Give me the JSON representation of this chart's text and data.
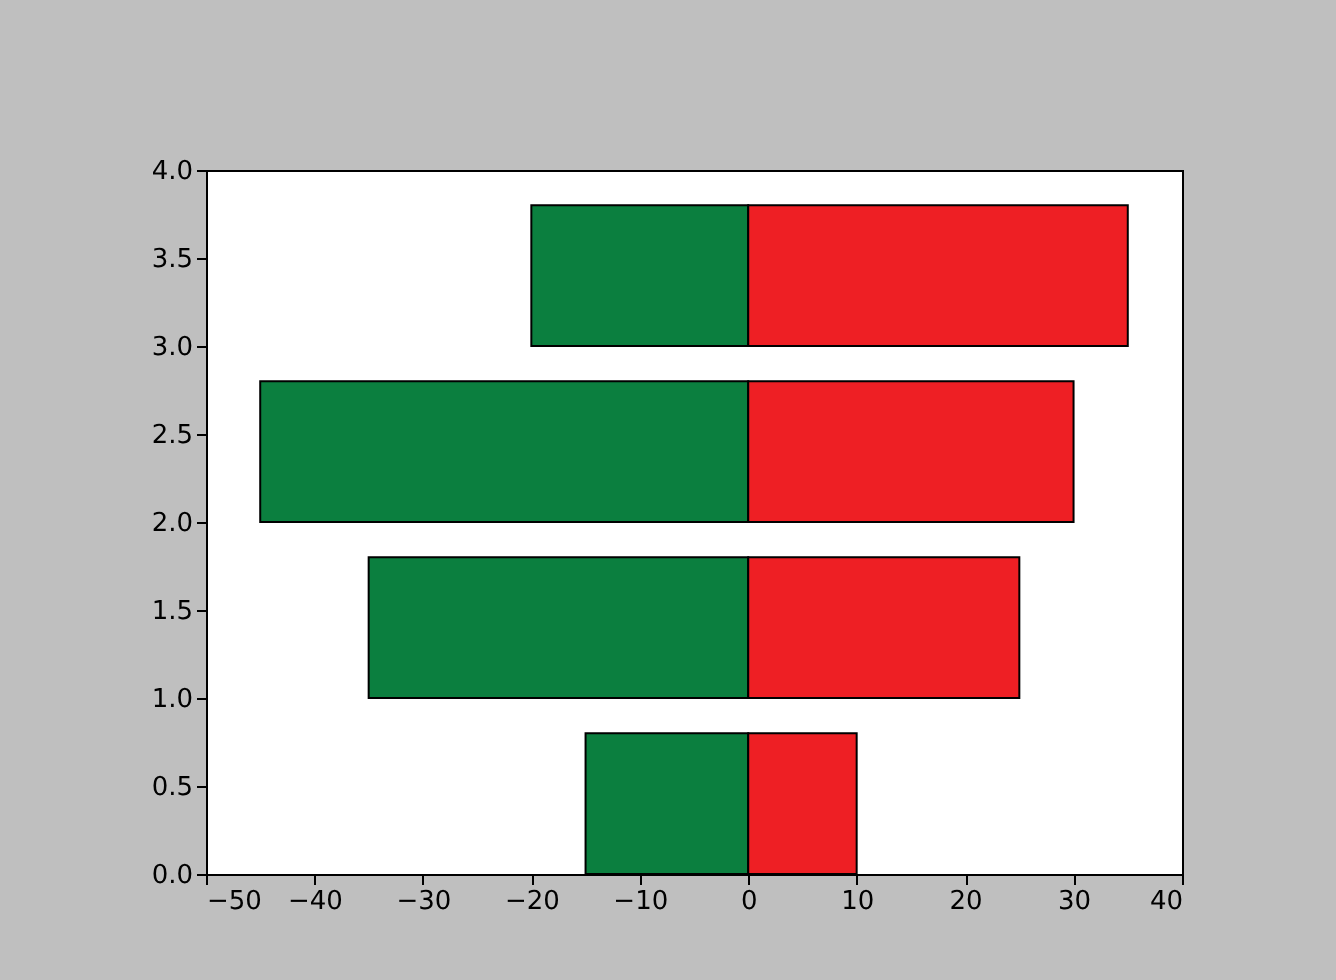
{
  "chart_data": {
    "type": "bar",
    "orientation": "horizontal",
    "stacked": true,
    "x": [
      0.4,
      1.4,
      2.4,
      3.4
    ],
    "series": [
      {
        "color": "#0b7f3f",
        "values": [
          -15,
          -35,
          -45,
          -20
        ]
      },
      {
        "color": "#ee1f24",
        "values": [
          10,
          25,
          30,
          35
        ]
      }
    ],
    "xlim": [
      -50,
      40
    ],
    "xticks": [
      -50,
      -40,
      -30,
      -20,
      -10,
      0,
      10,
      20,
      30,
      40
    ],
    "ylim": [
      0,
      4
    ],
    "yticks": [
      {
        "value": 0,
        "label": "0.0"
      },
      {
        "value": 0.5,
        "label": "0.5"
      },
      {
        "value": 1,
        "label": "1.0"
      },
      {
        "value": 1.5,
        "label": "1.5"
      },
      {
        "value": 2,
        "label": "2.0"
      },
      {
        "value": 2.5,
        "label": "2.5"
      },
      {
        "value": 3,
        "label": "3.0"
      },
      {
        "value": 3.5,
        "label": "3.5"
      },
      {
        "value": 4,
        "label": "4.0"
      }
    ],
    "grid": false
  }
}
